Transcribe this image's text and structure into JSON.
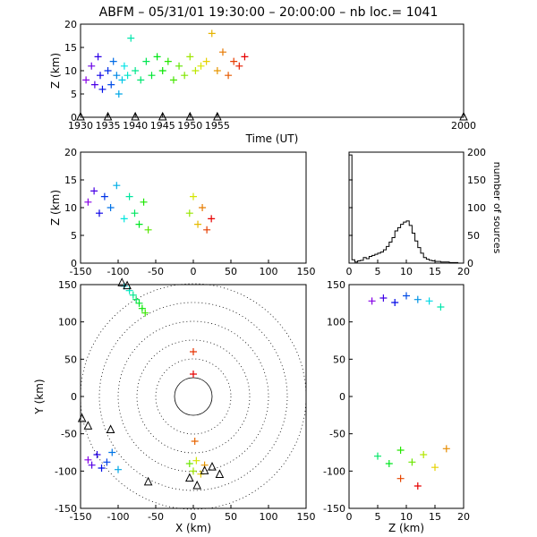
{
  "title": "ABFM – 05/31/01 19:30:00 – 20:00:00 – nb loc.=    1041",
  "chart_data": [
    {
      "id": "time-height",
      "type": "scatter",
      "xlabel": "Time (UT)",
      "ylabel": "Z (km)",
      "xlim": [
        1930,
        2000
      ],
      "ylim": [
        0,
        20
      ],
      "xticks": [
        1930,
        1935,
        1940,
        1945,
        1950,
        1955,
        2000
      ],
      "yticks": [
        0,
        5,
        10,
        15,
        20
      ],
      "series": [
        {
          "marker": "+",
          "color_by": "time",
          "x": [
            1931.0,
            1932.0,
            1932.6,
            1933.2,
            1933.6,
            1934.0,
            1935.0,
            1935.6,
            1936.0,
            1936.6,
            1937.0,
            1937.6,
            1938.0,
            1938.6,
            1939.2,
            1940.0,
            1941.0,
            1942.0,
            1943.0,
            1944.0,
            1945.0,
            1946.0,
            1947.0,
            1948.0,
            1949.0,
            1950.0,
            1951.0,
            1952.0,
            1953.0,
            1954.0,
            1955.0,
            1956.0,
            1957.0,
            1958.0,
            1959.0,
            1960.0
          ],
          "y": [
            8,
            11,
            7,
            13,
            9,
            6,
            10,
            7,
            12,
            9,
            5,
            8,
            11,
            9,
            17,
            10,
            8,
            12,
            9,
            13,
            10,
            12,
            8,
            11,
            9,
            13,
            10,
            11,
            12,
            18,
            10,
            14,
            9,
            12,
            11,
            13
          ]
        },
        {
          "marker": "triangle",
          "color": "#000000",
          "note": "ground markers",
          "x": [
            1930,
            1935,
            1940,
            1945,
            1950,
            1955,
            2000
          ],
          "y": [
            0,
            0,
            0,
            0,
            0,
            0,
            0
          ]
        }
      ]
    },
    {
      "id": "x-height",
      "type": "scatter",
      "xlabel": "",
      "ylabel": "Z (km)",
      "xlim": [
        -150,
        150
      ],
      "ylim": [
        0,
        20
      ],
      "xticks": [
        -150,
        -100,
        -50,
        0,
        50,
        100,
        150
      ],
      "yticks": [
        0,
        5,
        10,
        15,
        20
      ],
      "series": [
        {
          "marker": "+",
          "color_by": "time",
          "x": [
            -140,
            -132,
            -125,
            -118,
            -110,
            -102,
            -92,
            -85,
            -78,
            -72,
            -66,
            -60,
            -5,
            0,
            6,
            12,
            18,
            24
          ],
          "y": [
            11,
            13,
            9,
            12,
            10,
            14,
            8,
            12,
            9,
            7,
            11,
            6,
            9,
            12,
            7,
            10,
            6,
            8
          ]
        }
      ]
    },
    {
      "id": "height-histogram",
      "type": "line",
      "xlabel": "",
      "ylabel": "number of sources",
      "xlim": [
        0,
        20
      ],
      "ylim": [
        0,
        200
      ],
      "xticks": [
        0,
        5,
        10,
        15,
        20
      ],
      "yticks": [
        0,
        50,
        100,
        150,
        200
      ],
      "x": [
        0,
        0.5,
        1,
        1.5,
        2,
        2.5,
        3,
        3.5,
        4,
        4.5,
        5,
        5.5,
        6,
        6.5,
        7,
        7.5,
        8,
        8.5,
        9,
        9.5,
        10,
        10.5,
        11,
        11.5,
        12,
        12.5,
        13,
        13.5,
        14,
        14.5,
        15,
        15.5,
        16,
        16.5,
        17,
        17.5,
        18,
        18.5,
        19,
        19.5
      ],
      "values": [
        195,
        6,
        2,
        4,
        5,
        10,
        8,
        12,
        14,
        16,
        18,
        20,
        24,
        30,
        38,
        46,
        58,
        64,
        70,
        74,
        76,
        68,
        54,
        40,
        28,
        18,
        10,
        7,
        5,
        4,
        3,
        3,
        2,
        2,
        2,
        1,
        1,
        1,
        0,
        0
      ]
    },
    {
      "id": "plan-view",
      "type": "scatter",
      "xlabel": "X (km)",
      "ylabel": "Y (km)",
      "xlim": [
        -150,
        150
      ],
      "ylim": [
        -150,
        150
      ],
      "xticks": [
        -150,
        -100,
        -50,
        0,
        50,
        100,
        150
      ],
      "yticks": [
        -150,
        -100,
        -50,
        0,
        50,
        100,
        150
      ],
      "range_rings_km": [
        25,
        50,
        75,
        100,
        125,
        150
      ],
      "series": [
        {
          "marker": "+",
          "color_by": "time",
          "x": [
            -140,
            -135,
            -128,
            -122,
            -115,
            -108,
            -100,
            -92,
            -85,
            -80,
            -76,
            -72,
            -68,
            -64,
            -5,
            0,
            4,
            10,
            15,
            2,
            0,
            0
          ],
          "y": [
            -85,
            -92,
            -78,
            -96,
            -88,
            -75,
            -98,
            148,
            142,
            136,
            130,
            125,
            118,
            112,
            -90,
            -100,
            -86,
            -104,
            -92,
            -60,
            60,
            30
          ]
        },
        {
          "marker": "triangle",
          "color": "#000000",
          "note": "station markers",
          "x": [
            -148,
            -140,
            -110,
            -95,
            -88,
            -60,
            -5,
            5,
            15,
            25,
            35
          ],
          "y": [
            -30,
            -40,
            -45,
            152,
            148,
            -115,
            -110,
            -120,
            -100,
            -95,
            -105
          ]
        }
      ]
    },
    {
      "id": "height-y",
      "type": "scatter",
      "xlabel": "Z (km)",
      "ylabel": "",
      "xlim": [
        0,
        20
      ],
      "ylim": [
        -150,
        150
      ],
      "xticks": [
        0,
        5,
        10,
        15,
        20
      ],
      "yticks": [
        -150,
        -100,
        -50,
        0,
        50,
        100,
        150
      ],
      "series": [
        {
          "marker": "+",
          "color_by": "time",
          "x": [
            4,
            6,
            8,
            10,
            12,
            14,
            16,
            5,
            7,
            9,
            11,
            13,
            15,
            17,
            9,
            12
          ],
          "y": [
            128,
            132,
            126,
            135,
            130,
            128,
            120,
            -80,
            -90,
            -72,
            -88,
            -78,
            -95,
            -70,
            -110,
            -120
          ]
        }
      ]
    }
  ]
}
